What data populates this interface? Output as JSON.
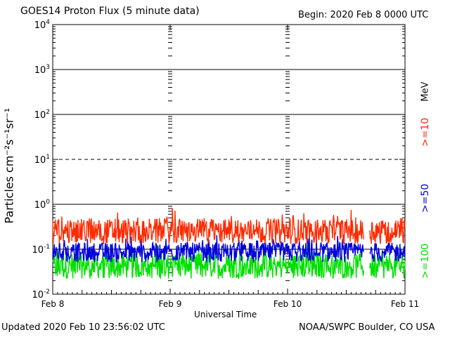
{
  "header": {
    "title": "GOES14 Proton Flux (5 minute data)",
    "begin": "Begin: 2020 Feb 8 0000 UTC"
  },
  "footer": {
    "updated": "Updated 2020 Feb 10 23:56:02 UTC",
    "credit": "NOAA/SWPC Boulder, CO USA"
  },
  "chart_data": {
    "type": "line",
    "title": "GOES14 Proton Flux (5 minute data)",
    "xlabel": "Universal Time",
    "ylabel": "Particles cm⁻²s⁻¹sr⁻¹",
    "yscale": "log",
    "ylim": [
      0.01,
      10000
    ],
    "xlim": [
      0,
      3
    ],
    "x_tick_labels": [
      "Feb 8",
      "Feb 9",
      "Feb 10",
      "Feb 11"
    ],
    "y_tick_labels": [
      {
        "base": "10",
        "exp": "-2"
      },
      {
        "base": "10",
        "exp": "-1"
      },
      {
        "base": "10",
        "exp": "0"
      },
      {
        "base": "10",
        "exp": "1"
      },
      {
        "base": "10",
        "exp": "2"
      },
      {
        "base": "10",
        "exp": "3"
      },
      {
        "base": "10",
        "exp": "4"
      }
    ],
    "threshold_lines": [
      {
        "value": 10,
        "style": "dashed"
      },
      {
        "value": 0.1,
        "style": "solid"
      }
    ],
    "solid_reference_lines": [
      1,
      100,
      1000
    ],
    "data_gap_days": [
      2.65,
      2.7
    ],
    "series": [
      {
        "name": ">=10",
        "color": "#ff2a00",
        "baseline": 0.25,
        "amp": 0.28
      },
      {
        "name": ">=50",
        "color": "#0000dd",
        "baseline": 0.085,
        "amp": 0.22
      },
      {
        "name": ">=100",
        "color": "#00e000",
        "baseline": 0.042,
        "amp": 0.28
      }
    ],
    "energy_unit": "MeV"
  }
}
